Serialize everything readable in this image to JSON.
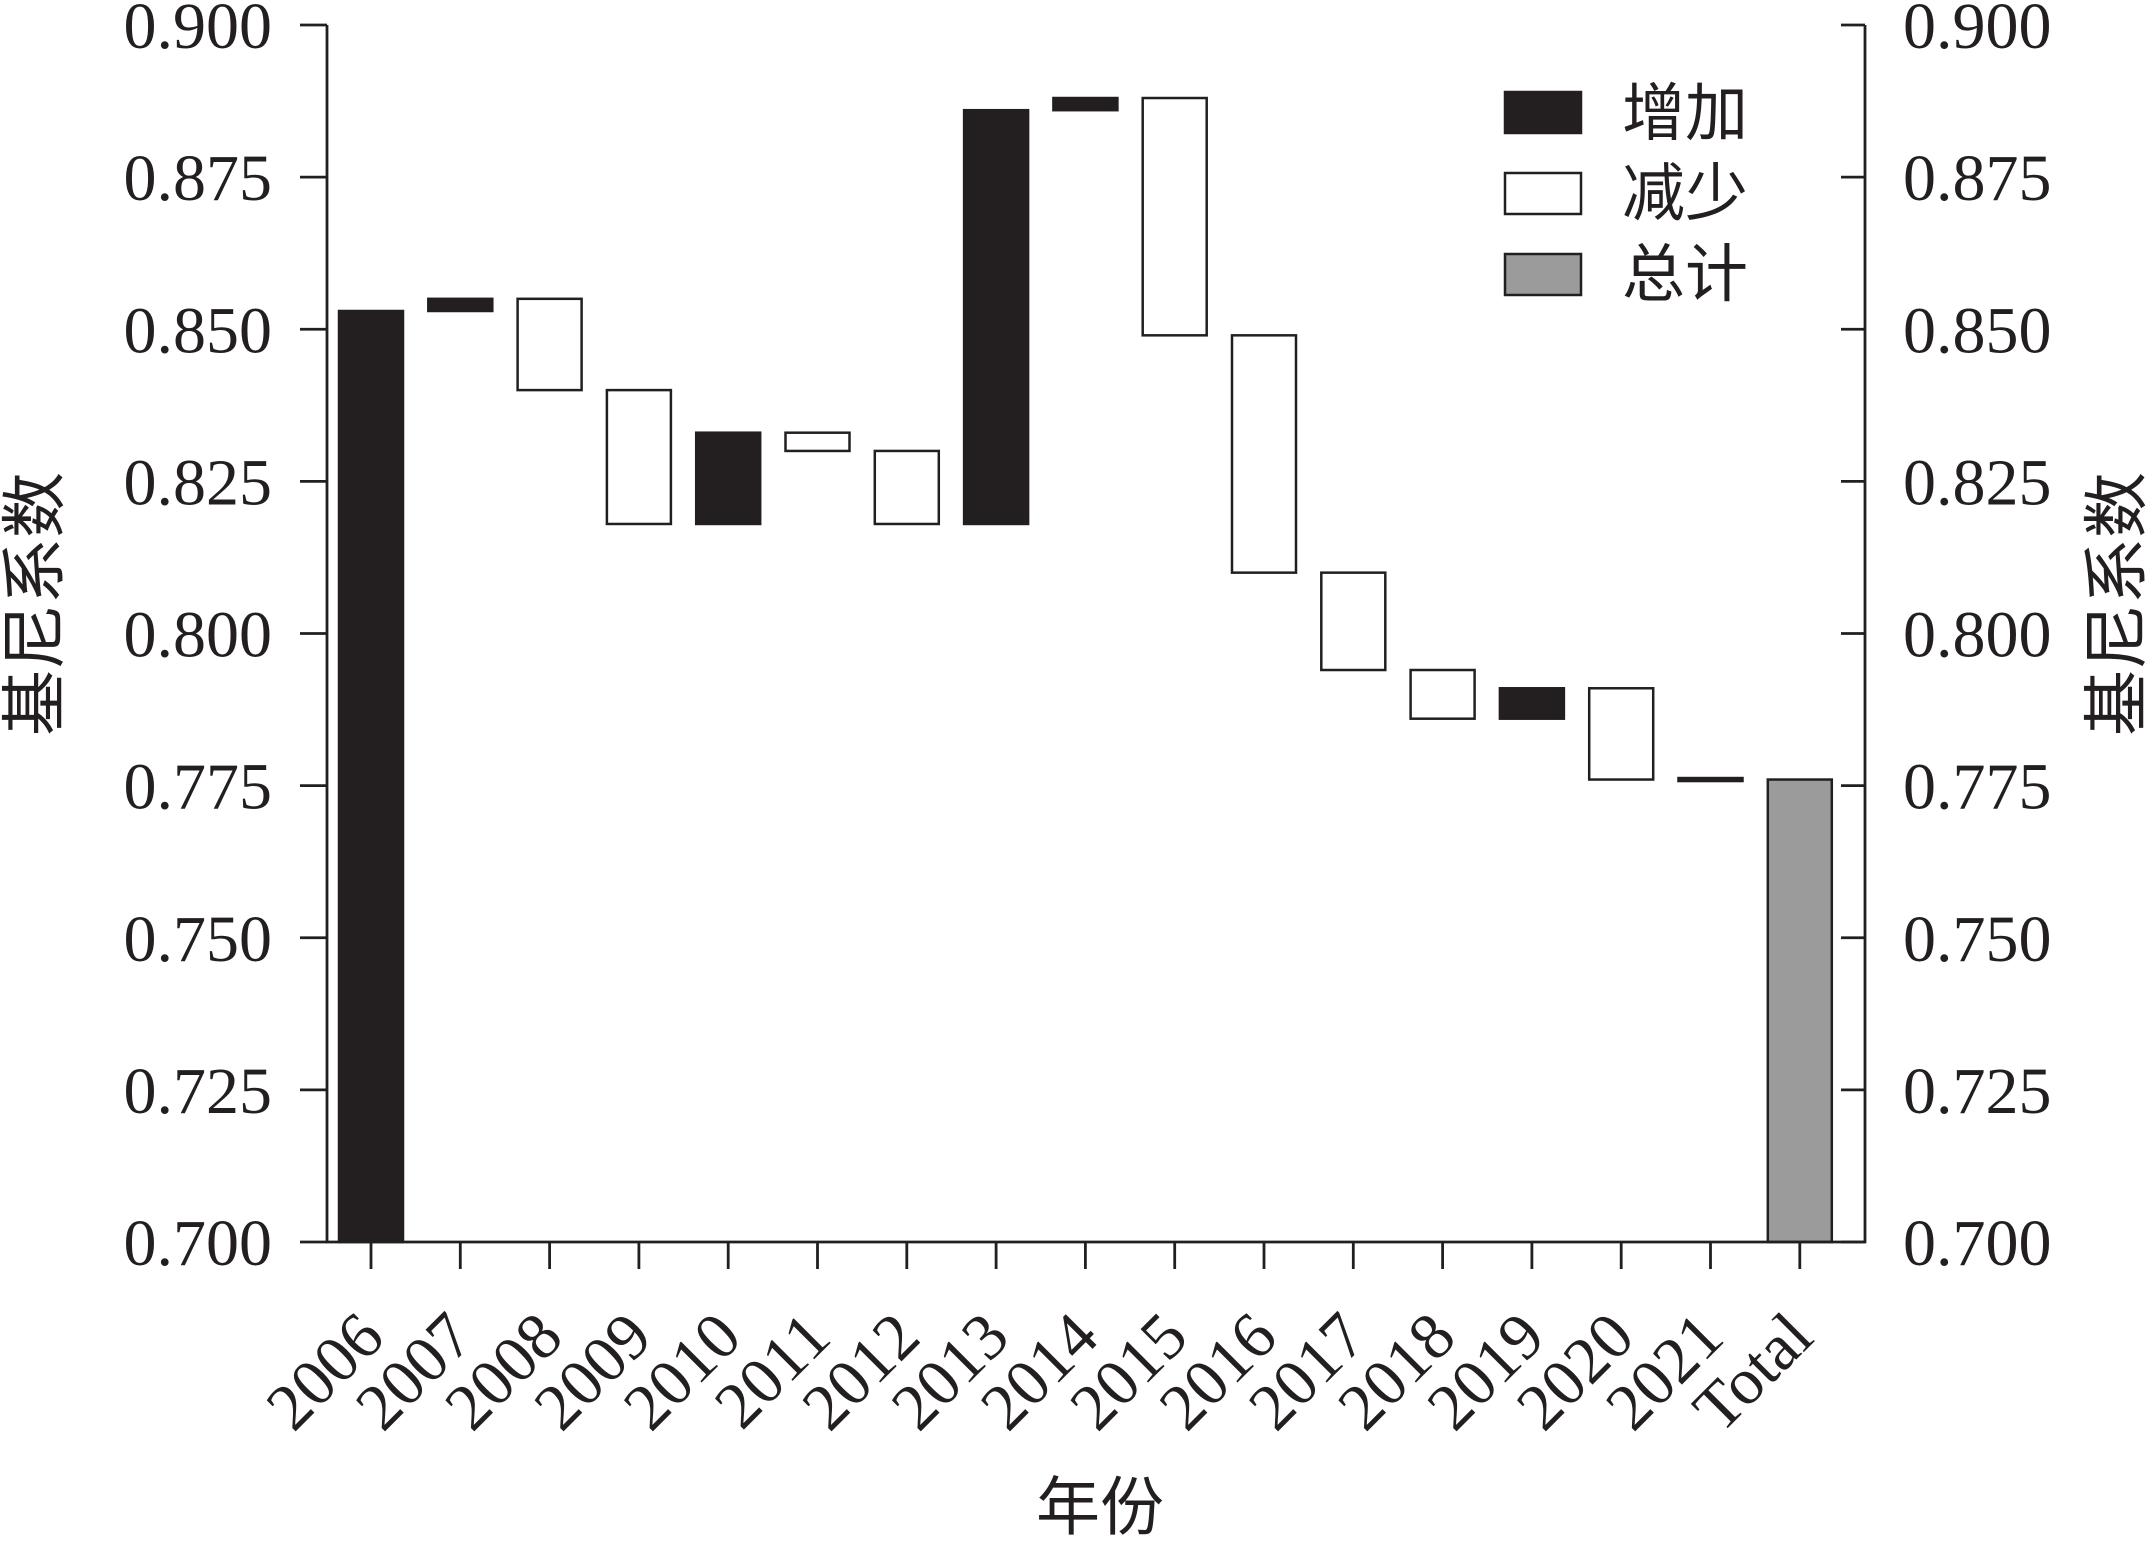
{
  "chart_data": {
    "type": "bar",
    "categories": [
      "2006",
      "2007",
      "2008",
      "2009",
      "2010",
      "2011",
      "2012",
      "2013",
      "2014",
      "2015",
      "2016",
      "2017",
      "2018",
      "2019",
      "2020",
      "2021",
      "Total"
    ],
    "start": [
      0.7,
      0.853,
      0.855,
      0.84,
      0.818,
      0.833,
      0.83,
      0.818,
      0.886,
      0.888,
      0.849,
      0.81,
      0.794,
      0.786,
      0.791,
      0.776,
      0.7
    ],
    "end": [
      0.853,
      0.855,
      0.84,
      0.818,
      0.833,
      0.83,
      0.818,
      0.886,
      0.888,
      0.849,
      0.81,
      0.794,
      0.786,
      0.791,
      0.776,
      0.776,
      0.776
    ],
    "kind": [
      0,
      0,
      1,
      1,
      0,
      1,
      1,
      0,
      0,
      1,
      1,
      1,
      1,
      0,
      1,
      0,
      2
    ],
    "legend": [
      {
        "label": "增加",
        "color": "#231f20"
      },
      {
        "label": "减少",
        "color": "#ffffff"
      },
      {
        "label": "总计",
        "color": "#9b9b9b"
      }
    ],
    "legend_position": "top-right",
    "edge_color": "#231f20",
    "xlabel": "年份",
    "ylabel": "基尼系数",
    "y2label": "基尼系数",
    "ylim": [
      0.7,
      0.9
    ],
    "ytick_labels": [
      "0.700",
      "0.725",
      "0.750",
      "0.775",
      "0.800",
      "0.825",
      "0.850",
      "0.875",
      "0.900"
    ],
    "grid": false
  }
}
